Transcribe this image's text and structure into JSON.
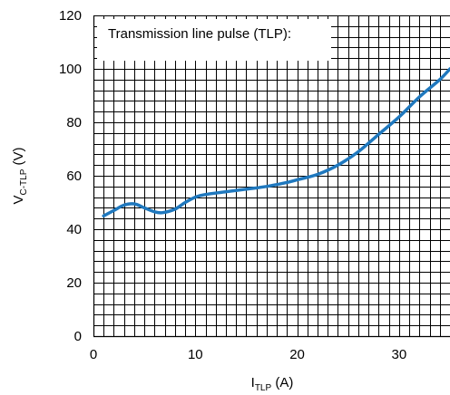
{
  "chart_data": {
    "type": "line",
    "title": "",
    "annotation": "Transmission line pulse (TLP):",
    "xlabel": {
      "main": "I",
      "sub": "TLP",
      "unit": " (A)"
    },
    "ylabel": {
      "main": "V",
      "sub": "C-TLP",
      "unit": " (V)"
    },
    "xlim": [
      0,
      35
    ],
    "ylim": [
      0,
      120
    ],
    "xticks": [
      0,
      10,
      20,
      30
    ],
    "yticks": [
      0,
      20,
      40,
      60,
      80,
      100,
      120
    ],
    "minor_x_step": 1,
    "minor_y_step": 4,
    "grid": true,
    "colors": {
      "line": "#1f78be",
      "grid": "#000000"
    },
    "series": [
      {
        "values_x": [
          1.0,
          2.0,
          3.0,
          4.0,
          5.0,
          6.0,
          6.8,
          8.0,
          9.0,
          10.0,
          11.0,
          13.0,
          15.0,
          17.0,
          19.0,
          20.0,
          22.0,
          24.0,
          26.0,
          28.0,
          30.0,
          32.0,
          34.0,
          35.0
        ],
        "values_y": [
          45.0,
          47.0,
          49.0,
          49.5,
          48.0,
          46.5,
          46.2,
          47.5,
          50.0,
          52.0,
          53.0,
          54.0,
          55.0,
          56.0,
          57.5,
          58.5,
          60.5,
          64.0,
          69.0,
          75.5,
          82.0,
          89.5,
          96.0,
          100.0
        ]
      }
    ]
  }
}
